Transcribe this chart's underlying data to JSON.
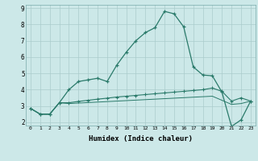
{
  "xlabel": "Humidex (Indice chaleur)",
  "background_color": "#cce8e8",
  "grid_color": "#aacccc",
  "line_color": "#2a7a6a",
  "xlim": [
    -0.5,
    23.5
  ],
  "ylim": [
    1.8,
    9.2
  ],
  "yticks": [
    2,
    3,
    4,
    5,
    6,
    7,
    8,
    9
  ],
  "xticks": [
    0,
    1,
    2,
    3,
    4,
    5,
    6,
    7,
    8,
    9,
    10,
    11,
    12,
    13,
    14,
    15,
    16,
    17,
    18,
    19,
    20,
    21,
    22,
    23
  ],
  "series1_x": [
    0,
    1,
    2,
    3,
    4,
    5,
    6,
    7,
    8,
    9,
    10,
    11,
    12,
    13,
    14,
    15,
    16,
    17,
    18,
    19,
    20,
    21,
    22,
    23
  ],
  "series1_y": [
    2.85,
    2.5,
    2.5,
    3.2,
    4.0,
    4.5,
    4.6,
    4.7,
    4.5,
    5.5,
    6.3,
    7.0,
    7.5,
    7.8,
    8.8,
    8.65,
    7.85,
    5.4,
    4.9,
    4.85,
    3.85,
    1.75,
    2.15,
    3.3
  ],
  "series2_x": [
    0,
    1,
    2,
    3,
    4,
    5,
    6,
    7,
    8,
    9,
    10,
    11,
    12,
    13,
    14,
    15,
    16,
    17,
    18,
    19,
    20,
    21,
    22,
    23
  ],
  "series2_y": [
    2.85,
    2.5,
    2.5,
    3.2,
    3.2,
    3.28,
    3.35,
    3.42,
    3.48,
    3.55,
    3.6,
    3.65,
    3.7,
    3.75,
    3.8,
    3.85,
    3.9,
    3.95,
    4.0,
    4.1,
    3.9,
    3.3,
    3.5,
    3.3
  ],
  "series3_x": [
    0,
    1,
    2,
    3,
    4,
    5,
    6,
    7,
    8,
    9,
    10,
    11,
    12,
    13,
    14,
    15,
    16,
    17,
    18,
    19,
    20,
    21,
    22,
    23
  ],
  "series3_y": [
    2.85,
    2.5,
    2.5,
    3.2,
    3.15,
    3.18,
    3.21,
    3.24,
    3.27,
    3.3,
    3.33,
    3.36,
    3.39,
    3.42,
    3.45,
    3.48,
    3.51,
    3.54,
    3.57,
    3.6,
    3.35,
    3.1,
    3.15,
    3.3
  ]
}
